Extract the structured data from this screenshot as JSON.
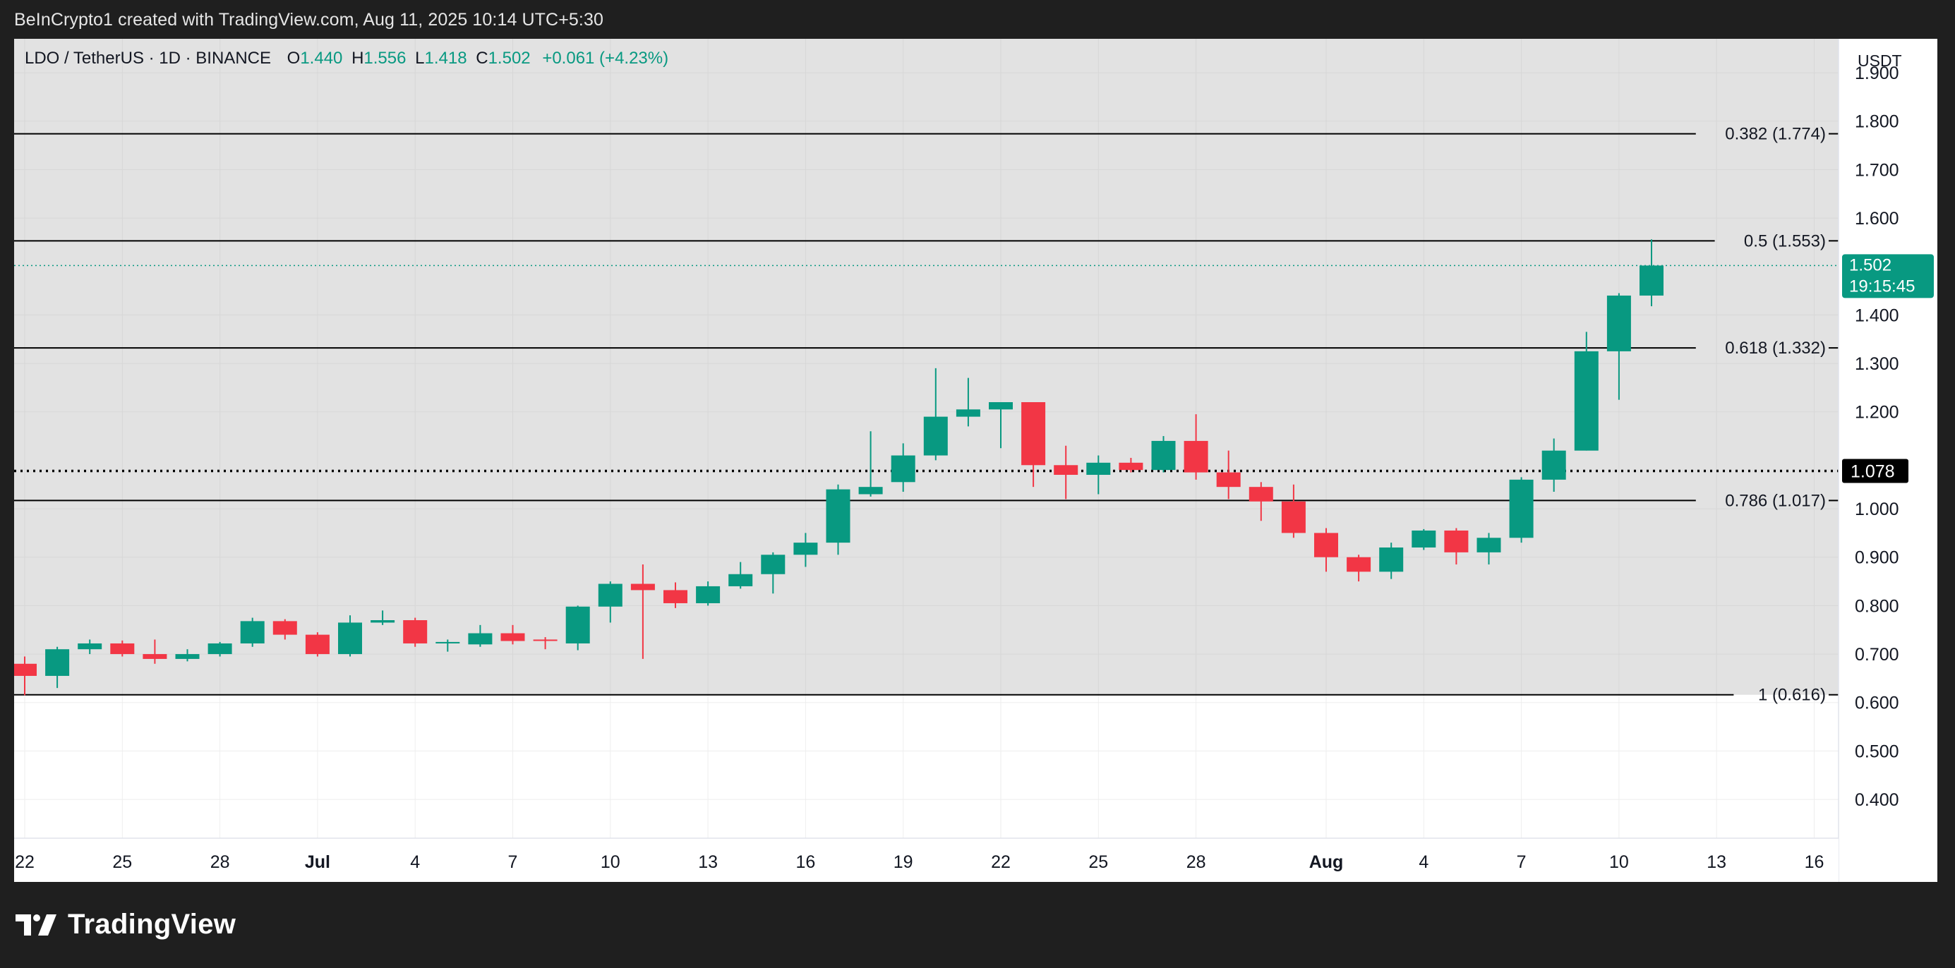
{
  "header": {
    "caption": "BeInCrypto1 created with TradingView.com, Aug 11, 2025 10:14 UTC+5:30"
  },
  "legend": {
    "symbol": "LDO / TetherUS · 1D · BINANCE",
    "o_label": "O",
    "o_value": "1.440",
    "h_label": "H",
    "h_value": "1.556",
    "l_label": "L",
    "l_value": "1.418",
    "c_label": "C",
    "c_value": "1.502",
    "change": "+0.061 (+4.23%)"
  },
  "price_axis": {
    "unit": "USDT",
    "ticks": [
      "1.900",
      "1.800",
      "1.700",
      "1.600",
      "1.400",
      "1.300",
      "1.200",
      "1.000",
      "0.900",
      "0.800",
      "0.700",
      "0.600",
      "0.500",
      "0.400"
    ],
    "current_price": "1.502",
    "countdown": "19:15:45",
    "crosshair_price": "1.078"
  },
  "time_axis": {
    "ticks": [
      {
        "label": "22",
        "day": 0
      },
      {
        "label": "25",
        "day": 3
      },
      {
        "label": "28",
        "day": 6
      },
      {
        "label": "Jul",
        "day": 9,
        "bold": true
      },
      {
        "label": "4",
        "day": 12
      },
      {
        "label": "7",
        "day": 15
      },
      {
        "label": "10",
        "day": 18
      },
      {
        "label": "13",
        "day": 21
      },
      {
        "label": "16",
        "day": 24
      },
      {
        "label": "19",
        "day": 27
      },
      {
        "label": "22",
        "day": 30
      },
      {
        "label": "25",
        "day": 33
      },
      {
        "label": "28",
        "day": 36
      },
      {
        "label": "Aug",
        "day": 40,
        "bold": true
      },
      {
        "label": "4",
        "day": 43
      },
      {
        "label": "7",
        "day": 46
      },
      {
        "label": "10",
        "day": 49
      },
      {
        "label": "13",
        "day": 52
      },
      {
        "label": "16",
        "day": 55
      }
    ]
  },
  "fib_levels": [
    {
      "label": "0.382 (1.774)",
      "price": 1.774
    },
    {
      "label": "0.5 (1.553)",
      "price": 1.553
    },
    {
      "label": "0.618 (1.332)",
      "price": 1.332
    },
    {
      "label": "0.786 (1.017)",
      "price": 1.017
    },
    {
      "label": "1 (0.616)",
      "price": 0.616
    }
  ],
  "colors": {
    "up": "#089981",
    "down": "#f23645",
    "zone": "#e0e0e0",
    "grid": "#d7d7d7",
    "text": "#131722"
  },
  "chart_data": {
    "type": "candlestick",
    "title": "LDO / TetherUS · 1D · BINANCE",
    "x_start": "2025-06-22",
    "x_end": "2025-08-11",
    "ylim": [
      0.32,
      1.97
    ],
    "candles": [
      {
        "date": "2025-06-22",
        "o": 0.68,
        "h": 0.695,
        "l": 0.615,
        "c": 0.655
      },
      {
        "date": "2025-06-23",
        "o": 0.655,
        "h": 0.715,
        "l": 0.63,
        "c": 0.71
      },
      {
        "date": "2025-06-24",
        "o": 0.71,
        "h": 0.73,
        "l": 0.7,
        "c": 0.722
      },
      {
        "date": "2025-06-25",
        "o": 0.722,
        "h": 0.728,
        "l": 0.695,
        "c": 0.7
      },
      {
        "date": "2025-06-26",
        "o": 0.7,
        "h": 0.73,
        "l": 0.68,
        "c": 0.69
      },
      {
        "date": "2025-06-27",
        "o": 0.69,
        "h": 0.71,
        "l": 0.685,
        "c": 0.7
      },
      {
        "date": "2025-06-28",
        "o": 0.7,
        "h": 0.725,
        "l": 0.695,
        "c": 0.722
      },
      {
        "date": "2025-06-29",
        "o": 0.722,
        "h": 0.775,
        "l": 0.715,
        "c": 0.768
      },
      {
        "date": "2025-06-30",
        "o": 0.768,
        "h": 0.772,
        "l": 0.73,
        "c": 0.74
      },
      {
        "date": "2025-07-01",
        "o": 0.74,
        "h": 0.745,
        "l": 0.695,
        "c": 0.7
      },
      {
        "date": "2025-07-02",
        "o": 0.7,
        "h": 0.78,
        "l": 0.695,
        "c": 0.765
      },
      {
        "date": "2025-07-03",
        "o": 0.765,
        "h": 0.79,
        "l": 0.76,
        "c": 0.77
      },
      {
        "date": "2025-07-04",
        "o": 0.77,
        "h": 0.775,
        "l": 0.715,
        "c": 0.722
      },
      {
        "date": "2025-07-05",
        "o": 0.722,
        "h": 0.73,
        "l": 0.705,
        "c": 0.725
      },
      {
        "date": "2025-07-06",
        "o": 0.72,
        "h": 0.76,
        "l": 0.715,
        "c": 0.743
      },
      {
        "date": "2025-07-07",
        "o": 0.743,
        "h": 0.76,
        "l": 0.72,
        "c": 0.727
      },
      {
        "date": "2025-07-08",
        "o": 0.73,
        "h": 0.735,
        "l": 0.71,
        "c": 0.728
      },
      {
        "date": "2025-07-09",
        "o": 0.722,
        "h": 0.8,
        "l": 0.708,
        "c": 0.798
      },
      {
        "date": "2025-07-10",
        "o": 0.798,
        "h": 0.85,
        "l": 0.765,
        "c": 0.845
      },
      {
        "date": "2025-07-11",
        "o": 0.845,
        "h": 0.885,
        "l": 0.69,
        "c": 0.832
      },
      {
        "date": "2025-07-12",
        "o": 0.832,
        "h": 0.848,
        "l": 0.795,
        "c": 0.805
      },
      {
        "date": "2025-07-13",
        "o": 0.805,
        "h": 0.85,
        "l": 0.8,
        "c": 0.84
      },
      {
        "date": "2025-07-14",
        "o": 0.84,
        "h": 0.89,
        "l": 0.835,
        "c": 0.865
      },
      {
        "date": "2025-07-15",
        "o": 0.865,
        "h": 0.91,
        "l": 0.825,
        "c": 0.905
      },
      {
        "date": "2025-07-16",
        "o": 0.905,
        "h": 0.95,
        "l": 0.88,
        "c": 0.93
      },
      {
        "date": "2025-07-17",
        "o": 0.93,
        "h": 1.05,
        "l": 0.905,
        "c": 1.04
      },
      {
        "date": "2025-07-18",
        "o": 1.03,
        "h": 1.16,
        "l": 1.025,
        "c": 1.045
      },
      {
        "date": "2025-07-19",
        "o": 1.055,
        "h": 1.135,
        "l": 1.035,
        "c": 1.11
      },
      {
        "date": "2025-07-20",
        "o": 1.11,
        "h": 1.29,
        "l": 1.1,
        "c": 1.19
      },
      {
        "date": "2025-07-21",
        "o": 1.19,
        "h": 1.27,
        "l": 1.17,
        "c": 1.205
      },
      {
        "date": "2025-07-22",
        "o": 1.205,
        "h": 1.22,
        "l": 1.125,
        "c": 1.22
      },
      {
        "date": "2025-07-23",
        "o": 1.22,
        "h": 1.22,
        "l": 1.045,
        "c": 1.09
      },
      {
        "date": "2025-07-24",
        "o": 1.09,
        "h": 1.13,
        "l": 1.02,
        "c": 1.07
      },
      {
        "date": "2025-07-25",
        "o": 1.07,
        "h": 1.11,
        "l": 1.03,
        "c": 1.095
      },
      {
        "date": "2025-07-26",
        "o": 1.095,
        "h": 1.105,
        "l": 1.075,
        "c": 1.08
      },
      {
        "date": "2025-07-27",
        "o": 1.08,
        "h": 1.15,
        "l": 1.075,
        "c": 1.14
      },
      {
        "date": "2025-07-28",
        "o": 1.14,
        "h": 1.195,
        "l": 1.06,
        "c": 1.075
      },
      {
        "date": "2025-07-29",
        "o": 1.075,
        "h": 1.12,
        "l": 1.02,
        "c": 1.045
      },
      {
        "date": "2025-07-30",
        "o": 1.045,
        "h": 1.055,
        "l": 0.975,
        "c": 1.015
      },
      {
        "date": "2025-07-31",
        "o": 1.015,
        "h": 1.05,
        "l": 0.94,
        "c": 0.95
      },
      {
        "date": "2025-08-01",
        "o": 0.95,
        "h": 0.96,
        "l": 0.87,
        "c": 0.9
      },
      {
        "date": "2025-08-02",
        "o": 0.9,
        "h": 0.905,
        "l": 0.85,
        "c": 0.87
      },
      {
        "date": "2025-08-03",
        "o": 0.87,
        "h": 0.93,
        "l": 0.855,
        "c": 0.92
      },
      {
        "date": "2025-08-04",
        "o": 0.92,
        "h": 0.958,
        "l": 0.915,
        "c": 0.955
      },
      {
        "date": "2025-08-05",
        "o": 0.955,
        "h": 0.96,
        "l": 0.885,
        "c": 0.91
      },
      {
        "date": "2025-08-06",
        "o": 0.91,
        "h": 0.95,
        "l": 0.885,
        "c": 0.94
      },
      {
        "date": "2025-08-07",
        "o": 0.94,
        "h": 1.065,
        "l": 0.93,
        "c": 1.06
      },
      {
        "date": "2025-08-08",
        "o": 1.06,
        "h": 1.145,
        "l": 1.035,
        "c": 1.12
      },
      {
        "date": "2025-08-09",
        "o": 1.12,
        "h": 1.365,
        "l": 1.12,
        "c": 1.325
      },
      {
        "date": "2025-08-10",
        "o": 1.325,
        "h": 1.445,
        "l": 1.225,
        "c": 1.44
      },
      {
        "date": "2025-08-11",
        "o": 1.44,
        "h": 1.556,
        "l": 1.418,
        "c": 1.502
      }
    ]
  },
  "brand": {
    "name": "TradingView"
  }
}
